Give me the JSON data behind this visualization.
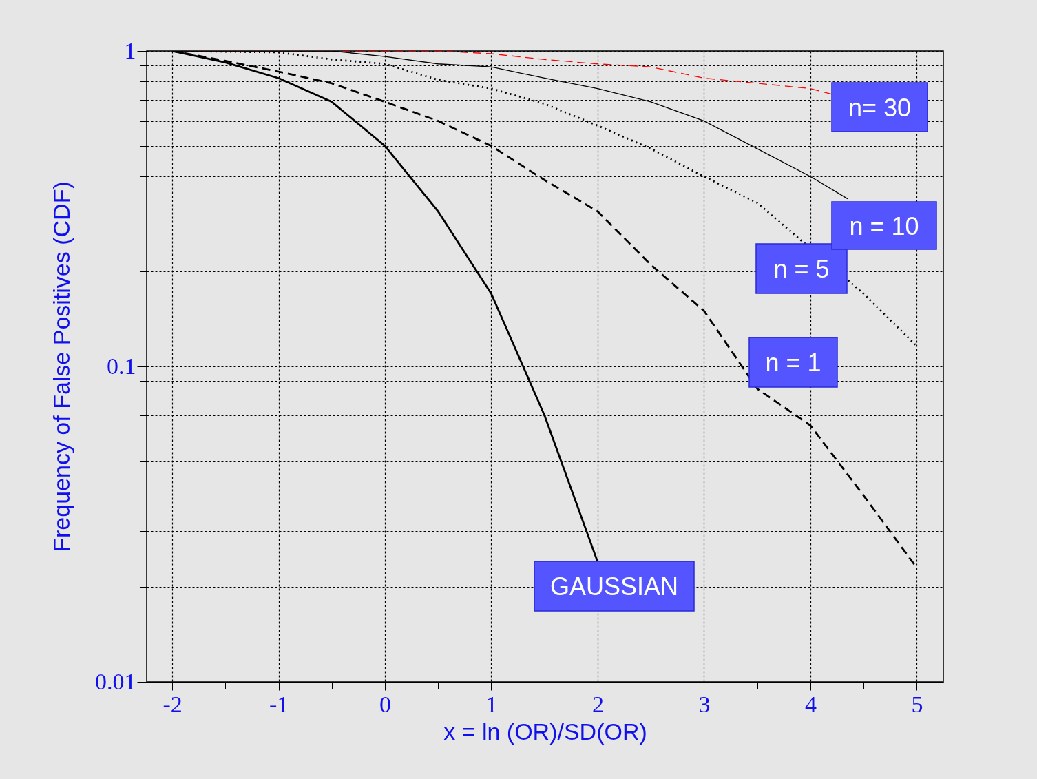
{
  "chart_data": {
    "type": "line",
    "xlabel": "x = ln (OR)/SD(OR)",
    "ylabel": "Frequency of False Positives (CDF)",
    "log": "y",
    "grid": true,
    "marker": "none",
    "xlim": [
      -2.24,
      5.25
    ],
    "ylim": [
      0.01,
      1
    ],
    "xticks": [
      -2,
      {
        "value": -1.5,
        "label": null
      },
      -1,
      {
        "value": -0.5,
        "label": null
      },
      0,
      {
        "value": 0.5,
        "label": null
      },
      1,
      {
        "value": 1.5,
        "label": null
      },
      2,
      {
        "value": 2.5,
        "label": null
      },
      3,
      {
        "value": 3.5,
        "label": null
      },
      4,
      {
        "value": 4.5,
        "label": null
      },
      5
    ],
    "yticks": [
      0.01,
      {
        "value": 0.02,
        "label": null
      },
      {
        "value": 0.03,
        "label": null
      },
      {
        "value": 0.04,
        "label": null
      },
      {
        "value": 0.05,
        "label": null
      },
      {
        "value": 0.06,
        "label": null
      },
      {
        "value": 0.07,
        "label": null
      },
      {
        "value": 0.08,
        "label": null
      },
      {
        "value": 0.09,
        "label": null
      },
      0.1,
      {
        "value": 0.2,
        "label": null
      },
      {
        "value": 0.3,
        "label": null
      },
      {
        "value": 0.4,
        "label": null
      },
      {
        "value": 0.5,
        "label": null
      },
      {
        "value": 0.6,
        "label": null
      },
      {
        "value": 0.7,
        "label": null
      },
      {
        "value": 0.8,
        "label": null
      },
      {
        "value": 0.9,
        "label": null
      },
      1
    ],
    "series": [
      {
        "name": "GAUSSIAN",
        "color": "#000000",
        "line_style": "solid",
        "x": [
          -2,
          -1.5,
          -1,
          -0.5,
          0,
          0.5,
          1,
          1.5,
          2
        ],
        "values": [
          1,
          0.92,
          0.82,
          0.69,
          0.5,
          0.31,
          0.17,
          0.07,
          0.024
        ]
      },
      {
        "name": "n = 1",
        "color": "#000000",
        "line_style": "dashed",
        "x": [
          -2,
          -1.5,
          -1,
          -0.5,
          0,
          0.5,
          1,
          1.5,
          2,
          2.5,
          3,
          3.5,
          4,
          4.5,
          5
        ],
        "values": [
          1,
          0.93,
          0.86,
          0.79,
          0.69,
          0.6,
          0.5,
          0.39,
          0.31,
          0.21,
          0.15,
          0.085,
          0.065,
          0.039,
          0.023
        ]
      },
      {
        "name": "n = 5",
        "color": "#000000",
        "line_style": "dotted",
        "x": [
          -2,
          -1,
          -0.5,
          0,
          0.5,
          1,
          1.5,
          2,
          2.5,
          3,
          3.5,
          4.5,
          5
        ],
        "values": [
          1,
          0.99,
          0.94,
          0.91,
          0.81,
          0.76,
          0.68,
          0.58,
          0.49,
          0.4,
          0.33,
          0.17,
          0.116
        ]
      },
      {
        "name": "n = 10",
        "color": "#000000",
        "line_style": "solid",
        "x": [
          -2,
          -1,
          -0.5,
          0,
          0.5,
          1,
          1.5,
          2,
          2.5,
          3,
          3.5,
          4,
          4.35
        ],
        "values": [
          1,
          1,
          1,
          0.96,
          0.91,
          0.89,
          0.82,
          0.76,
          0.69,
          0.6,
          0.49,
          0.4,
          0.34
        ]
      },
      {
        "name": "n= 30",
        "color": "#ff0000",
        "line_style": "dashed",
        "x": [
          -2,
          0.5,
          1,
          1.5,
          2,
          2.5,
          3,
          3.5,
          4,
          4.2
        ],
        "values": [
          1,
          1,
          0.98,
          0.94,
          0.91,
          0.89,
          0.82,
          0.79,
          0.76,
          0.73
        ]
      }
    ]
  }
}
